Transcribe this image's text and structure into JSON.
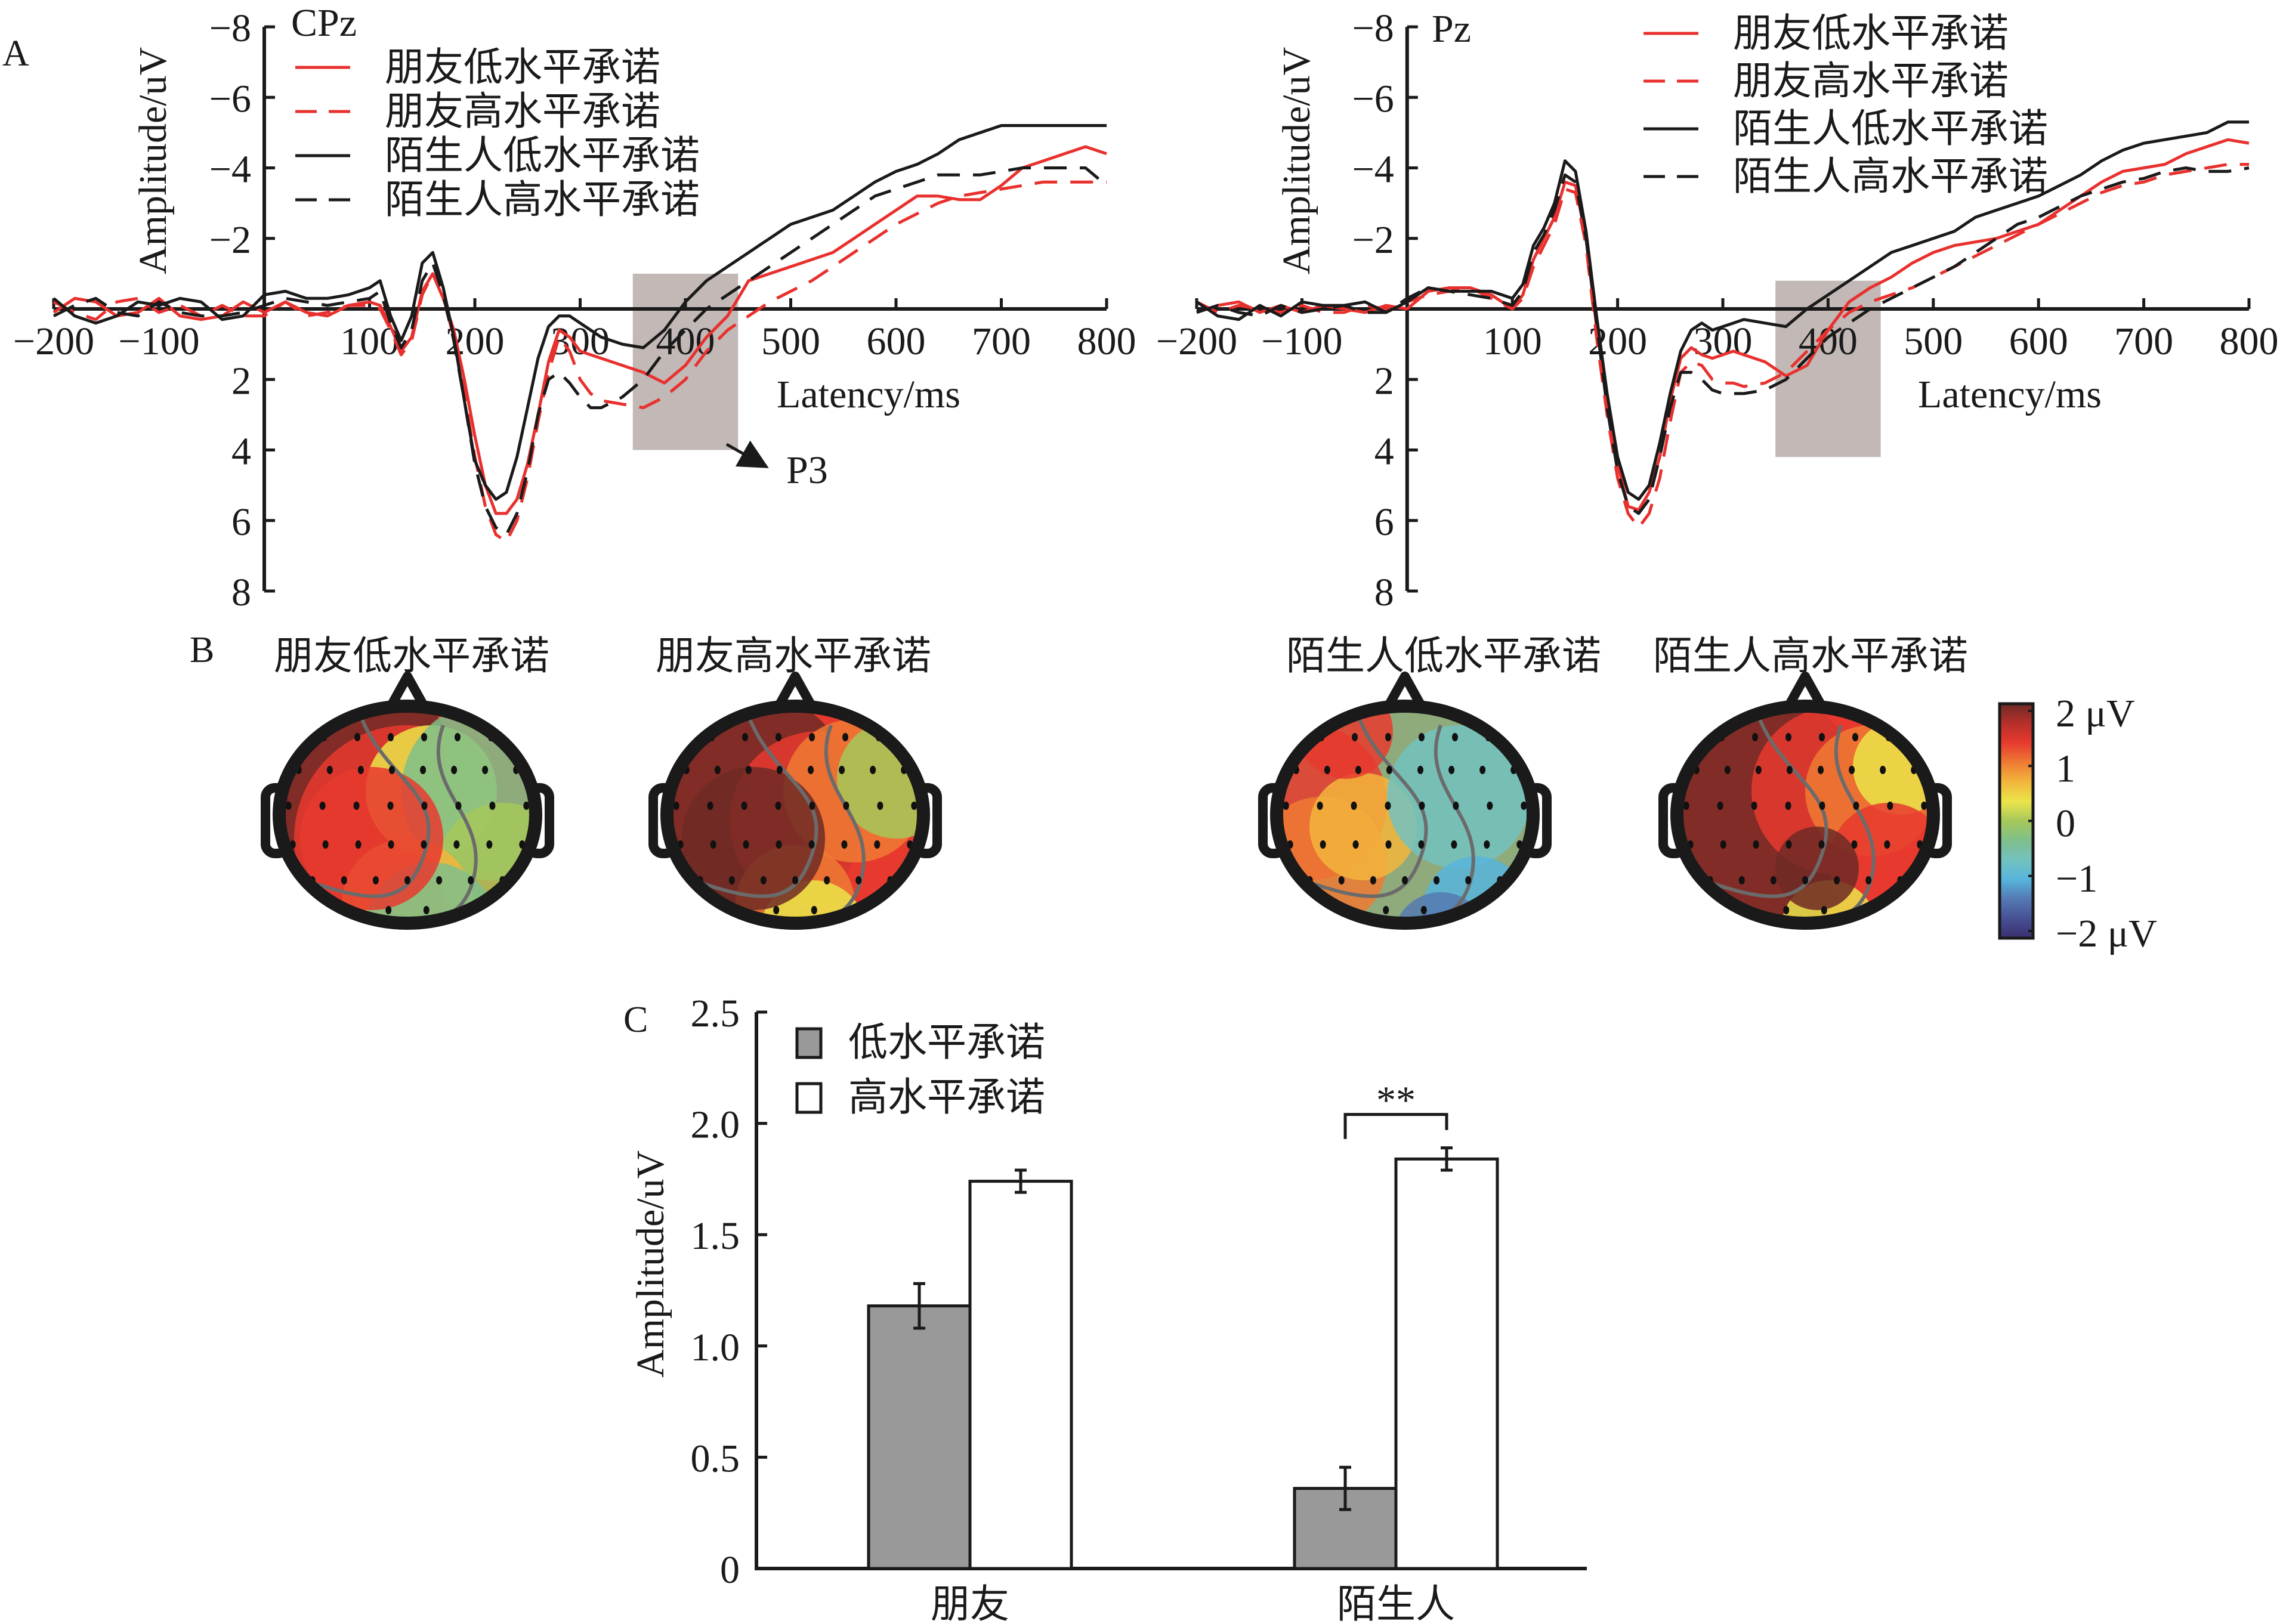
{
  "panel_labels": {
    "A": "A",
    "B": "B",
    "C": "C"
  },
  "legend_entries": [
    {
      "label": "朋友低水平承诺",
      "color": "#e8312e",
      "dashed": false
    },
    {
      "label": "朋友高水平承诺",
      "color": "#e8312e",
      "dashed": true
    },
    {
      "label": "陌生人低水平承诺",
      "color": "#1a1a1a",
      "dashed": false
    },
    {
      "label": "陌生人高水平承诺",
      "color": "#1a1a1a",
      "dashed": true
    }
  ],
  "chart_data": [
    {
      "id": "erp-cpz",
      "type": "line",
      "title": "CPz",
      "xlabel": "Latency/ms",
      "ylabel": "Amplitude/uV",
      "xlim": [
        -200,
        800
      ],
      "ylim": [
        8,
        -8
      ],
      "y_inverted": true,
      "xticks": [
        -200,
        -100,
        100,
        200,
        300,
        400,
        500,
        600,
        700,
        800
      ],
      "yticks": [
        -8,
        -6,
        -4,
        -2,
        2,
        4,
        6,
        8
      ],
      "legend_position": "top-left",
      "shaded_window": {
        "x": [
          350,
          450
        ],
        "y": [
          -1,
          4
        ],
        "color": "#c2b8b6"
      },
      "annotation": {
        "text": "P3",
        "points_from": [
          420,
          4.2
        ]
      },
      "x": [
        -200,
        -180,
        -160,
        -140,
        -120,
        -100,
        -80,
        -60,
        -40,
        -20,
        0,
        20,
        40,
        60,
        80,
        100,
        110,
        120,
        130,
        140,
        150,
        160,
        170,
        180,
        190,
        200,
        210,
        220,
        230,
        240,
        250,
        260,
        270,
        280,
        290,
        300,
        310,
        320,
        340,
        360,
        380,
        400,
        420,
        440,
        460,
        480,
        500,
        520,
        540,
        560,
        580,
        600,
        620,
        640,
        660,
        680,
        700,
        720,
        740,
        760,
        780,
        800
      ],
      "series": [
        {
          "name": "朋友低水平承诺",
          "color": "#e8312e",
          "dashed": false,
          "values": [
            0.1,
            -0.3,
            -0.2,
            0.2,
            0.1,
            -0.3,
            0.2,
            0.3,
            0.2,
            -0.2,
            0.1,
            -0.2,
            0.1,
            0.2,
            -0.1,
            -0.2,
            -0.1,
            0.5,
            1.2,
            0.8,
            -0.5,
            -1.0,
            -0.3,
            0.6,
            2.0,
            3.6,
            5.0,
            5.8,
            5.8,
            5.4,
            4.4,
            3.0,
            1.5,
            0.6,
            0.8,
            1.2,
            1.3,
            1.4,
            1.6,
            1.8,
            2.1,
            1.6,
            0.8,
            0.2,
            -0.8,
            -1.0,
            -1.2,
            -1.4,
            -1.6,
            -2.0,
            -2.4,
            -2.8,
            -3.2,
            -3.2,
            -3.1,
            -3.1,
            -3.5,
            -4.0,
            -4.2,
            -4.4,
            -4.6,
            -4.4
          ]
        },
        {
          "name": "朋友高水平承诺",
          "color": "#e8312e",
          "dashed": true,
          "values": [
            -0.2,
            0.1,
            0.3,
            -0.2,
            -0.3,
            0.1,
            -0.1,
            0.2,
            -0.1,
            0.2,
            0.2,
            -0.2,
            0.2,
            0.1,
            -0.1,
            -0.1,
            0.0,
            0.6,
            1.3,
            0.9,
            -0.4,
            -1.0,
            -0.3,
            0.8,
            2.4,
            4.2,
            5.6,
            6.4,
            6.6,
            6.0,
            4.8,
            3.2,
            1.8,
            0.8,
            1.2,
            2.0,
            2.4,
            2.6,
            2.7,
            2.8,
            2.5,
            2.0,
            1.2,
            0.6,
            0.2,
            -0.2,
            -0.5,
            -0.8,
            -1.2,
            -1.6,
            -2.0,
            -2.4,
            -2.7,
            -3.0,
            -3.2,
            -3.3,
            -3.4,
            -3.5,
            -3.6,
            -3.6,
            -3.6,
            -3.6
          ]
        },
        {
          "name": "陌生人低水平承诺",
          "color": "#1a1a1a",
          "dashed": false,
          "values": [
            -0.3,
            0.2,
            0.4,
            0.2,
            -0.2,
            -0.1,
            -0.3,
            -0.2,
            0.3,
            0.2,
            -0.4,
            -0.5,
            -0.3,
            -0.3,
            -0.4,
            -0.6,
            -0.8,
            0.2,
            0.9,
            0.2,
            -1.3,
            -1.6,
            -0.6,
            0.8,
            2.6,
            4.3,
            5.0,
            5.4,
            5.2,
            4.2,
            2.8,
            1.4,
            0.5,
            0.2,
            0.2,
            0.4,
            0.6,
            0.8,
            1.0,
            1.1,
            0.6,
            -0.2,
            -0.8,
            -1.2,
            -1.6,
            -2.0,
            -2.4,
            -2.6,
            -2.8,
            -3.2,
            -3.6,
            -3.9,
            -4.1,
            -4.4,
            -4.8,
            -5.0,
            -5.2,
            -5.2,
            -5.2,
            -5.2,
            -5.2,
            -5.2
          ]
        },
        {
          "name": "陌生人高水平承诺",
          "color": "#1a1a1a",
          "dashed": true,
          "values": [
            0.2,
            -0.1,
            -0.3,
            0.1,
            0.2,
            -0.2,
            0.1,
            0.2,
            0.2,
            0.1,
            -0.1,
            -0.3,
            -0.2,
            -0.1,
            -0.2,
            -0.3,
            -0.5,
            0.4,
            1.1,
            0.6,
            -0.8,
            -1.3,
            -0.4,
            0.9,
            2.6,
            4.4,
            5.6,
            6.2,
            6.4,
            5.8,
            4.6,
            3.0,
            2.0,
            1.8,
            2.1,
            2.5,
            2.8,
            2.8,
            2.5,
            2.0,
            1.2,
            0.6,
            0.0,
            -0.4,
            -0.8,
            -1.2,
            -1.6,
            -2.0,
            -2.4,
            -2.8,
            -3.2,
            -3.4,
            -3.6,
            -3.8,
            -3.8,
            -3.8,
            -3.9,
            -4.0,
            -4.0,
            -4.0,
            -4.0,
            -3.5
          ]
        }
      ]
    },
    {
      "id": "erp-pz",
      "type": "line",
      "title": "Pz",
      "xlabel": "Latency/ms",
      "ylabel": "Amplitude/uV",
      "xlim": [
        -200,
        800
      ],
      "ylim": [
        8,
        -8
      ],
      "y_inverted": true,
      "xticks": [
        -200,
        -100,
        100,
        200,
        300,
        400,
        500,
        600,
        700,
        800
      ],
      "yticks": [
        -8,
        -6,
        -4,
        -2,
        2,
        4,
        6,
        8
      ],
      "legend_position": "top-right",
      "shaded_window": {
        "x": [
          350,
          450
        ],
        "y": [
          -0.8,
          4.2
        ],
        "color": "#c2b8b6"
      },
      "x": [
        -200,
        -180,
        -160,
        -140,
        -120,
        -100,
        -80,
        -60,
        -40,
        -20,
        0,
        20,
        40,
        60,
        80,
        100,
        110,
        120,
        130,
        140,
        150,
        160,
        170,
        180,
        190,
        200,
        210,
        220,
        230,
        240,
        250,
        260,
        270,
        280,
        290,
        300,
        310,
        320,
        340,
        360,
        380,
        400,
        420,
        440,
        460,
        480,
        500,
        520,
        540,
        560,
        580,
        600,
        620,
        640,
        660,
        680,
        700,
        720,
        740,
        760,
        780,
        800
      ],
      "series": [
        {
          "name": "朋友低水平承诺",
          "color": "#e8312e",
          "dashed": false,
          "values": [
            0.1,
            -0.1,
            -0.2,
            0.1,
            -0.1,
            0.1,
            -0.1,
            0.0,
            0.1,
            -0.1,
            0.0,
            -0.5,
            -0.6,
            -0.6,
            -0.4,
            0.0,
            -0.4,
            -1.4,
            -2.0,
            -2.6,
            -3.6,
            -3.5,
            -2.0,
            0.5,
            2.6,
            4.4,
            5.6,
            5.7,
            5.2,
            4.2,
            2.6,
            1.4,
            1.1,
            1.3,
            1.4,
            1.3,
            1.2,
            1.3,
            1.5,
            1.9,
            1.6,
            0.6,
            -0.2,
            -0.6,
            -0.9,
            -1.3,
            -1.6,
            -1.8,
            -1.9,
            -2.0,
            -2.2,
            -2.4,
            -2.8,
            -3.2,
            -3.6,
            -3.9,
            -4.0,
            -4.1,
            -4.4,
            -4.6,
            -4.8,
            -4.7
          ]
        },
        {
          "name": "朋友高水平承诺",
          "color": "#e8312e",
          "dashed": true,
          "values": [
            -0.2,
            0.1,
            -0.1,
            0.0,
            0.1,
            -0.1,
            0.1,
            0.1,
            -0.1,
            0.0,
            -0.2,
            -0.4,
            -0.5,
            -0.6,
            -0.3,
            0.0,
            -0.3,
            -1.2,
            -1.8,
            -2.4,
            -3.4,
            -3.3,
            -1.8,
            0.8,
            3.0,
            4.8,
            5.8,
            6.2,
            5.8,
            4.8,
            3.2,
            1.8,
            1.5,
            1.6,
            2.0,
            2.1,
            2.1,
            2.2,
            2.1,
            1.8,
            1.2,
            0.6,
            0.1,
            -0.2,
            -0.4,
            -0.6,
            -0.9,
            -1.2,
            -1.5,
            -1.8,
            -2.1,
            -2.4,
            -2.7,
            -3.0,
            -3.3,
            -3.5,
            -3.6,
            -3.8,
            -3.9,
            -4.0,
            -4.1,
            -4.1
          ]
        },
        {
          "name": "陌生人低水平承诺",
          "color": "#1a1a1a",
          "dashed": false,
          "values": [
            -0.2,
            0.2,
            0.3,
            -0.1,
            0.2,
            -0.2,
            -0.1,
            -0.1,
            -0.2,
            0.1,
            -0.2,
            -0.6,
            -0.5,
            -0.5,
            -0.5,
            -0.3,
            -0.7,
            -1.8,
            -2.3,
            -3.0,
            -4.2,
            -3.9,
            -2.2,
            0.2,
            2.4,
            4.2,
            5.2,
            5.4,
            5.0,
            3.8,
            2.4,
            1.2,
            0.6,
            0.4,
            0.6,
            0.5,
            0.4,
            0.3,
            0.4,
            0.5,
            0.0,
            -0.4,
            -0.8,
            -1.2,
            -1.6,
            -1.8,
            -2.0,
            -2.2,
            -2.6,
            -2.8,
            -3.0,
            -3.2,
            -3.5,
            -3.8,
            -4.2,
            -4.5,
            -4.7,
            -4.8,
            -4.9,
            -5.0,
            -5.3,
            -5.3
          ]
        },
        {
          "name": "陌生人高水平承诺",
          "color": "#1a1a1a",
          "dashed": true,
          "values": [
            0.1,
            -0.1,
            0.1,
            0.2,
            -0.1,
            0.1,
            0.0,
            -0.1,
            0.1,
            0.1,
            -0.3,
            -0.6,
            -0.5,
            -0.4,
            -0.3,
            -0.1,
            -0.5,
            -1.6,
            -2.1,
            -2.8,
            -3.8,
            -3.6,
            -2.0,
            0.4,
            2.8,
            4.6,
            5.6,
            5.8,
            5.4,
            4.2,
            2.8,
            1.8,
            1.8,
            2.0,
            2.3,
            2.4,
            2.4,
            2.4,
            2.3,
            2.0,
            1.4,
            0.8,
            0.4,
            0.0,
            -0.3,
            -0.6,
            -0.9,
            -1.2,
            -1.6,
            -2.0,
            -2.4,
            -2.6,
            -2.9,
            -3.2,
            -3.4,
            -3.6,
            -3.7,
            -3.9,
            -4.0,
            -3.9,
            -3.9,
            -4.0
          ]
        }
      ]
    },
    {
      "id": "p3-bar",
      "type": "bar",
      "title": "",
      "xlabel": "",
      "ylabel": "Amplitude/uV",
      "ylim": [
        0,
        2.5
      ],
      "yticks": [
        0,
        0.5,
        1.0,
        1.5,
        2.0,
        2.5
      ],
      "ytick_labels": [
        "0",
        "0.5",
        "1.0",
        "1.5",
        "2.0",
        "2.5"
      ],
      "categories": [
        "朋友",
        "陌生人"
      ],
      "legend_position": "top-left",
      "series": [
        {
          "name": "低水平承诺",
          "color": "#999999",
          "values": [
            1.18,
            0.36
          ],
          "errors": [
            0.1,
            0.095
          ]
        },
        {
          "name": "高水平承诺",
          "color": "#ffffff",
          "values": [
            1.74,
            1.84
          ],
          "errors": [
            0.05,
            0.05
          ]
        }
      ],
      "significance": [
        {
          "category": "陌生人",
          "label": "**"
        }
      ]
    }
  ],
  "topomaps": {
    "titles": [
      "朋友低水平承诺",
      "朋友高水平承诺",
      "陌生人低水平承诺",
      "陌生人高水平承诺"
    ],
    "colorbar": {
      "range": [
        -2,
        2
      ],
      "unit": "μV",
      "tick_labels": [
        "2 μV",
        "1",
        "0",
        "−1",
        "−2 μV"
      ],
      "colors": [
        "#6e2a25",
        "#b52f2a",
        "#e73a2f",
        "#ee7a33",
        "#f3b53c",
        "#ebe44a",
        "#a6c85a",
        "#7fbf8a",
        "#73c2c0",
        "#57b4dc",
        "#5579b2",
        "#465093",
        "#3b2f6e"
      ]
    }
  }
}
